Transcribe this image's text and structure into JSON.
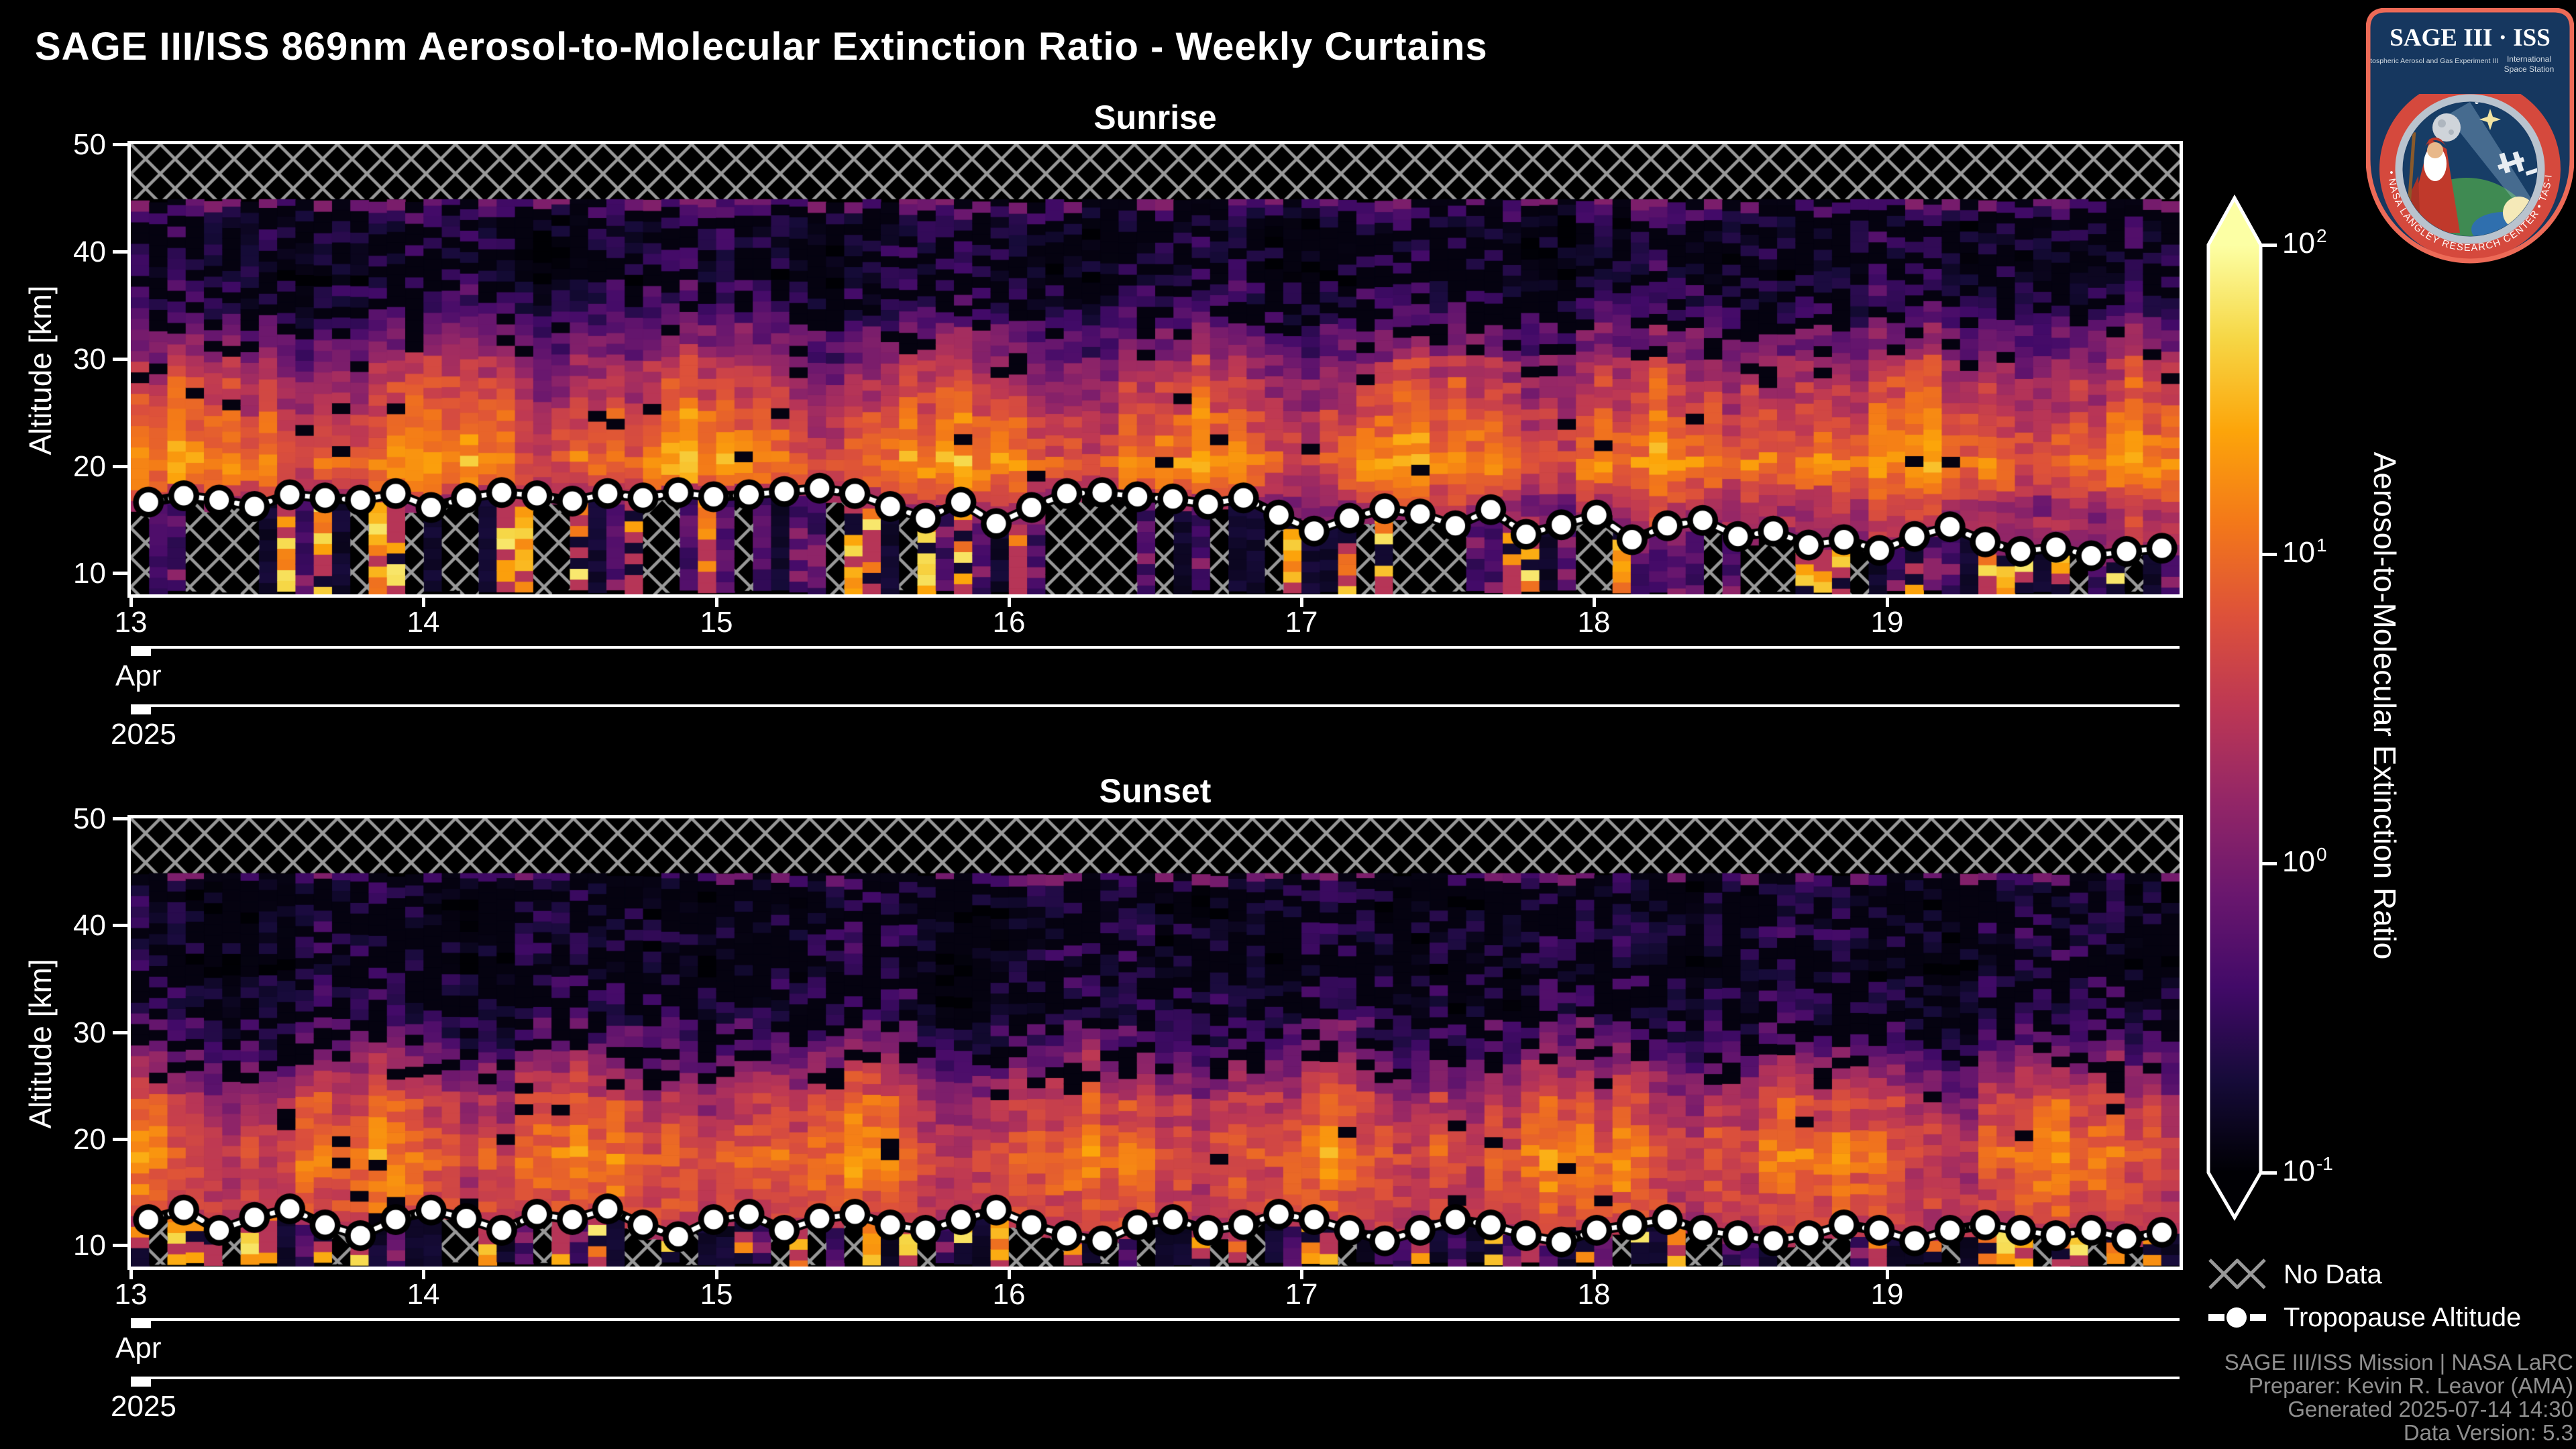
{
  "title": "SAGE III/ISS 869nm Aerosol-to-Molecular Extinction Ratio - Weekly Curtains",
  "x_axis": {
    "day_labels": [
      "13",
      "14",
      "15",
      "16",
      "17",
      "18",
      "19"
    ],
    "month_label": "Apr",
    "year_label": "2025"
  },
  "y_axis": {
    "label": "Altitude [km]",
    "tick_labels": [
      "50",
      "40",
      "30",
      "20",
      "10"
    ],
    "ylim": [
      8,
      50
    ]
  },
  "colorbar": {
    "title": "Aerosol-to-Molecular Extinction Ratio",
    "scale": "log",
    "extend": "both",
    "range_min": 0.1,
    "range_max": 100,
    "ticks": [
      {
        "base": "10",
        "exp": "2"
      },
      {
        "base": "10",
        "exp": "1"
      },
      {
        "base": "10",
        "exp": "0"
      },
      {
        "base": "10",
        "exp": "-1"
      }
    ]
  },
  "legend": [
    {
      "label": "No Data",
      "marker": "hatch-swatch"
    },
    {
      "label": "Tropopause Altitude",
      "marker": "dash-dot-line"
    }
  ],
  "attribution": [
    "SAGE III/ISS Mission | NASA LaRC",
    "Preparer: Kevin R. Leavor (AMA)",
    "Generated 2025-07-14 14:30",
    "Data Version: 5.3"
  ],
  "logo": {
    "title": "SAGE III · ISS",
    "tagline_left": "Stratospheric Aerosol and Gas Experiment III",
    "tagline_right_1": "International",
    "tagline_right_2": "Space Station",
    "ring_text": "BALL • NASA LANGLEY RESEARCH CENTER • TAS-I • ESA"
  },
  "colors": {
    "background": "#000000",
    "axis": "#ffffff",
    "hatch": "#999999",
    "attribution_text": "#8f8f8f",
    "tropopause_marker_fill": "#ffffff",
    "tropopause_marker_edge": "#000000",
    "logo_border": "#ed6a57",
    "logo_navy": "#16375f",
    "inferno_stops": [
      [
        0.0,
        "#000004"
      ],
      [
        0.1,
        "#160b39"
      ],
      [
        0.2,
        "#420a68"
      ],
      [
        0.3,
        "#6a176e"
      ],
      [
        0.4,
        "#932667"
      ],
      [
        0.5,
        "#bc3754"
      ],
      [
        0.6,
        "#dd513a"
      ],
      [
        0.7,
        "#f37819"
      ],
      [
        0.8,
        "#fca50a"
      ],
      [
        0.9,
        "#f6d746"
      ],
      [
        1.0,
        "#fcffa4"
      ]
    ]
  },
  "chart_data": [
    {
      "type": "heatmap",
      "title": "Sunrise",
      "x_tick_labels": [
        "13",
        "14",
        "15",
        "16",
        "17",
        "18",
        "19"
      ],
      "x_month": "Apr",
      "x_year": "2025",
      "ylabel": "Altitude [km]",
      "ylim": [
        8,
        50
      ],
      "no_data_above_km": 45,
      "color_scale": {
        "type": "log",
        "min": 0.1,
        "max": 100,
        "colormap": "inferno",
        "extend": "both"
      },
      "profile_log10": [
        [
          8,
          0.25
        ],
        [
          14,
          0.3
        ],
        [
          17,
          0.5
        ],
        [
          18.5,
          0.85
        ],
        [
          20,
          1.12
        ],
        [
          21.5,
          1.15
        ],
        [
          23,
          1.0
        ],
        [
          25,
          0.75
        ],
        [
          27,
          0.5
        ],
        [
          29,
          0.25
        ],
        [
          31,
          -0.05
        ],
        [
          33,
          -0.35
        ],
        [
          35,
          -0.75
        ],
        [
          38,
          -0.95
        ],
        [
          42,
          -0.9
        ],
        [
          44,
          -0.75
        ],
        [
          45.2,
          -0.3
        ]
      ],
      "tropopause_km": [
        16.6,
        17.2,
        16.8,
        16.2,
        17.3,
        17.0,
        16.8,
        17.4,
        16.1,
        17.0,
        17.5,
        17.2,
        16.7,
        17.4,
        17.0,
        17.5,
        17.1,
        17.3,
        17.6,
        17.9,
        17.4,
        16.2,
        15.1,
        16.6,
        14.6,
        16.1,
        17.4,
        17.5,
        17.1,
        16.9,
        16.4,
        17.0,
        15.4,
        13.9,
        15.1,
        16.0,
        15.5,
        14.4,
        15.9,
        13.6,
        14.5,
        15.4,
        13.1,
        14.4,
        14.9,
        13.4,
        13.9,
        12.6,
        13.1,
        12.1,
        13.4,
        14.3,
        12.9,
        12.0,
        12.4,
        11.6,
        12.0,
        12.3
      ]
    },
    {
      "type": "heatmap",
      "title": "Sunset",
      "x_tick_labels": [
        "13",
        "14",
        "15",
        "16",
        "17",
        "18",
        "19"
      ],
      "x_month": "Apr",
      "x_year": "2025",
      "ylabel": "Altitude [km]",
      "ylim": [
        8,
        50
      ],
      "no_data_above_km": 45,
      "color_scale": {
        "type": "log",
        "min": 0.1,
        "max": 100,
        "colormap": "inferno",
        "extend": "both"
      },
      "profile_log10": [
        [
          8,
          0.5
        ],
        [
          12,
          0.7
        ],
        [
          14,
          0.75
        ],
        [
          16,
          0.85
        ],
        [
          18,
          0.95
        ],
        [
          20,
          0.9
        ],
        [
          22,
          0.7
        ],
        [
          24,
          0.45
        ],
        [
          25,
          0.25
        ],
        [
          26,
          0.05
        ],
        [
          28,
          -0.25
        ],
        [
          30,
          -0.55
        ],
        [
          33,
          -0.85
        ],
        [
          36,
          -1.0
        ],
        [
          42,
          -0.95
        ],
        [
          44,
          -0.8
        ],
        [
          45.2,
          -0.4
        ]
      ],
      "tropopause_km": [
        12.4,
        13.3,
        11.4,
        12.6,
        13.4,
        11.9,
        10.9,
        12.4,
        13.3,
        12.5,
        11.4,
        12.9,
        12.4,
        13.4,
        11.9,
        10.8,
        12.4,
        12.9,
        11.4,
        12.5,
        12.9,
        11.9,
        11.4,
        12.4,
        13.3,
        11.9,
        10.9,
        10.4,
        11.9,
        12.4,
        11.4,
        11.9,
        12.9,
        12.4,
        11.4,
        10.4,
        11.4,
        12.4,
        11.9,
        10.9,
        10.3,
        11.4,
        11.9,
        12.4,
        11.4,
        10.9,
        10.4,
        10.9,
        11.9,
        11.4,
        10.4,
        11.4,
        11.9,
        11.4,
        10.9,
        11.4,
        10.6,
        11.2
      ]
    }
  ]
}
